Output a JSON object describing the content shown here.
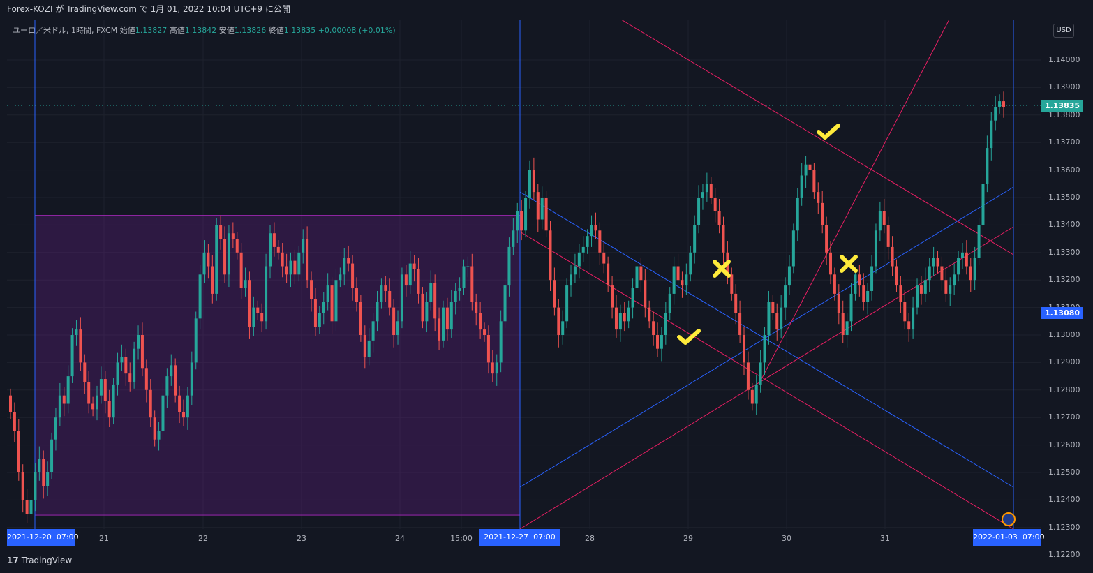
{
  "header": {
    "publish_text": "Forex-KOZI が TradingView.com で 1月 01, 2022 10:04 UTC+9 に公開"
  },
  "legend": {
    "symbol": "ユーロ／米ドル, 1時間, FXCM",
    "open_label": "始値",
    "open": "1.13827",
    "high_label": "高値",
    "high": "1.13842",
    "low_label": "安値",
    "low": "1.13826",
    "close_label": "終値",
    "close": "1.13835",
    "change": "+0.00008 (+0.01%)"
  },
  "price_axis": {
    "currency": "USD",
    "ticks": [
      "1.14000",
      "1.13900",
      "1.13800",
      "1.13700",
      "1.13600",
      "1.13500",
      "1.13400",
      "1.13300",
      "1.13200",
      "1.13100",
      "1.13000",
      "1.12900",
      "1.12800",
      "1.12700",
      "1.12600",
      "1.12500",
      "1.12400",
      "1.12300",
      "1.12200"
    ],
    "last_price": "1.13835",
    "last_price_color": "#26a69a",
    "hline_price": "1.13080",
    "hline_color": "#2962ff"
  },
  "time_axis": {
    "ticks": [
      "21",
      "22",
      "23",
      "24",
      "15:00",
      "28",
      "29",
      "30",
      "31"
    ],
    "badges": [
      "2021-12-20  07:00",
      "2021-12-27  07:00",
      "2022-01-03  07:00"
    ]
  },
  "footer": {
    "brand": "TradingView",
    "logo": "17"
  },
  "colors": {
    "up": "#26a69a",
    "down": "#ef5350",
    "rect": "#7b1fa2",
    "pink_line": "#e91e63",
    "blue_line": "#2962ff",
    "marker": "#ffeb3b"
  },
  "chart_data": {
    "type": "candlestick",
    "symbol": "EUR/USD",
    "interval": "1h",
    "ylim": [
      1.1219,
      1.1406
    ],
    "x_range": [
      "2021-12-20 06:00",
      "2022-01-03 07:00"
    ],
    "last": {
      "open": 1.13827,
      "high": 1.13842,
      "low": 1.13826,
      "close": 1.13835
    },
    "horizontal_line": 1.1308,
    "rectangle": {
      "from": "2021-12-20 07:00",
      "to": "2021-12-27 07:00",
      "high": 1.13435,
      "low": 1.12345
    },
    "markers": [
      {
        "type": "check",
        "near": "2021-12-28 23:00",
        "price": 1.129
      },
      {
        "type": "cross",
        "near": "2021-12-29 08:00",
        "price": 1.1314
      },
      {
        "type": "check",
        "near": "2021-12-30 10:00",
        "price": 1.1366
      },
      {
        "type": "cross",
        "near": "2021-12-30 16:00",
        "price": 1.1316
      }
    ],
    "series": [
      {
        "name": "",
        "values": [
          1.1272,
          1.1265,
          1.125,
          1.124,
          1.1235,
          1.124,
          1.125,
          1.1255,
          1.1245,
          1.125,
          1.1262,
          1.127,
          1.1278,
          1.1275,
          1.1285,
          1.13,
          1.1302,
          1.129,
          1.1283,
          1.1275,
          1.1273,
          1.1278,
          1.1284,
          1.1276,
          1.127,
          1.1282,
          1.129,
          1.1292,
          1.1286,
          1.1283,
          1.1295,
          1.13,
          1.1288,
          1.128,
          1.127,
          1.1262,
          1.1265,
          1.1278,
          1.1285,
          1.1289,
          1.1278,
          1.1272,
          1.127,
          1.1278,
          1.129,
          1.1306,
          1.1322,
          1.133,
          1.1325,
          1.1315,
          1.134,
          1.1335,
          1.1322,
          1.1337,
          1.1335,
          1.133,
          1.1317,
          1.132,
          1.1303,
          1.131,
          1.1308,
          1.1305,
          1.1325,
          1.1337,
          1.1332,
          1.133,
          1.1325,
          1.1322,
          1.1327,
          1.1322,
          1.133,
          1.1335,
          1.132,
          1.1313,
          1.1303,
          1.1308,
          1.1312,
          1.1318,
          1.1305,
          1.132,
          1.1322,
          1.1328,
          1.1326,
          1.1317,
          1.1312,
          1.13,
          1.1292,
          1.1298,
          1.1305,
          1.1312,
          1.1318,
          1.1316,
          1.131,
          1.13,
          1.1305,
          1.1322,
          1.1318,
          1.1326,
          1.1324,
          1.1315,
          1.1305,
          1.1312,
          1.1319,
          1.1306,
          1.1298,
          1.131,
          1.1302,
          1.1312,
          1.1316,
          1.1317,
          1.1325,
          1.1325,
          1.1312,
          1.1308,
          1.1302,
          1.13,
          1.129,
          1.1286,
          1.129,
          1.1305,
          1.1318,
          1.1332,
          1.1338,
          1.1345,
          1.1338,
          1.135,
          1.136,
          1.1352,
          1.1342,
          1.135,
          1.1338,
          1.132,
          1.131,
          1.13,
          1.1305,
          1.1318,
          1.1322,
          1.1325,
          1.133,
          1.1332,
          1.1336,
          1.134,
          1.1338,
          1.133,
          1.1326,
          1.1318,
          1.131,
          1.1302,
          1.1308,
          1.1305,
          1.131,
          1.1317,
          1.1325,
          1.132,
          1.131,
          1.1305,
          1.13,
          1.1295,
          1.13,
          1.1308,
          1.1315,
          1.1325,
          1.132,
          1.1318,
          1.1322,
          1.133,
          1.134,
          1.135,
          1.1352,
          1.1355,
          1.135,
          1.1345,
          1.134,
          1.133,
          1.1322,
          1.1315,
          1.1308,
          1.13,
          1.129,
          1.128,
          1.1275,
          1.1282,
          1.129,
          1.13,
          1.1312,
          1.1308,
          1.1302,
          1.131,
          1.1318,
          1.1325,
          1.1338,
          1.135,
          1.1358,
          1.1362,
          1.136,
          1.1352,
          1.1348,
          1.134,
          1.133,
          1.1322,
          1.1315,
          1.1308,
          1.13,
          1.1305,
          1.1315,
          1.1322,
          1.1318,
          1.1312,
          1.1316,
          1.1325,
          1.1338,
          1.1345,
          1.134,
          1.1332,
          1.1325,
          1.1318,
          1.1312,
          1.1305,
          1.1302,
          1.131,
          1.1318,
          1.1315,
          1.132,
          1.1325,
          1.1328,
          1.1325,
          1.132,
          1.1315,
          1.1318,
          1.1322,
          1.1328,
          1.133,
          1.1325,
          1.132,
          1.1328,
          1.134,
          1.1355,
          1.1368,
          1.1378,
          1.1383,
          1.1385,
          1.1383
        ]
      }
    ]
  }
}
